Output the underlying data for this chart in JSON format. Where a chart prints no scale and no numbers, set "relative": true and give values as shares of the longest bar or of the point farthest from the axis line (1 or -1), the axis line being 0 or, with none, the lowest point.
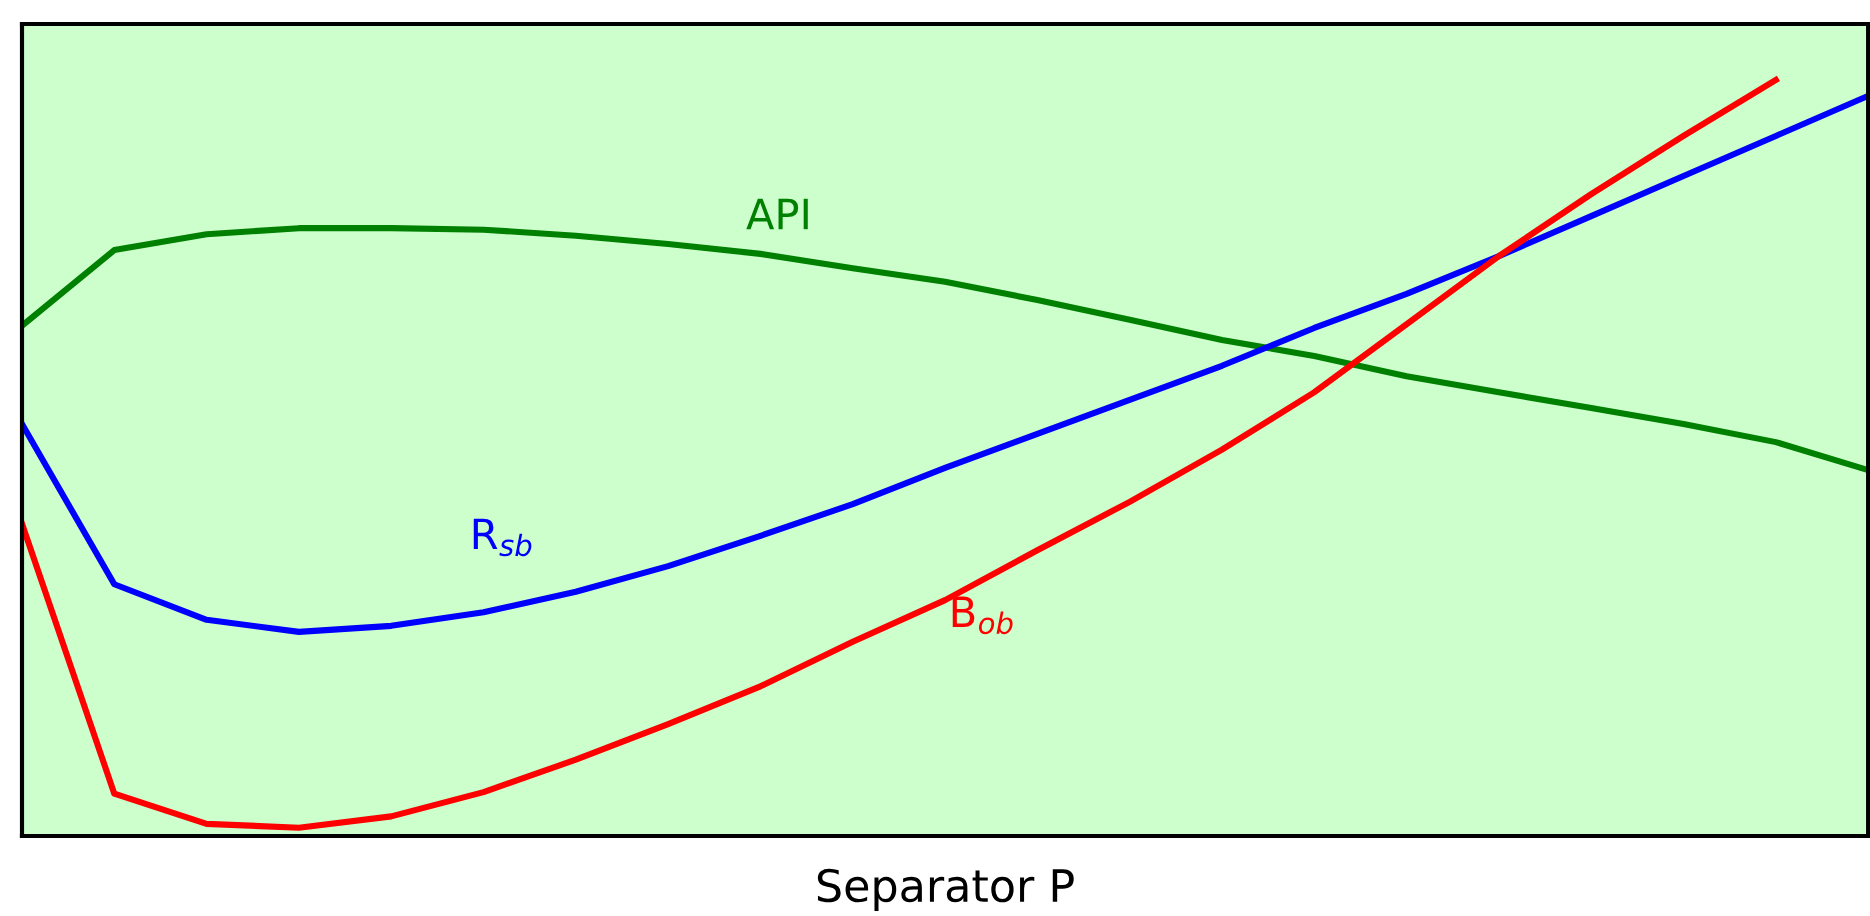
{
  "chart_data": {
    "type": "line",
    "relative": true,
    "xlabel": "Separator P",
    "grid": false,
    "legend": false,
    "marker": "none",
    "line_style": "solid",
    "categories": [
      null,
      null,
      null,
      null,
      null,
      null,
      null,
      null,
      null,
      null,
      null,
      null,
      null,
      null,
      null,
      null,
      null,
      null,
      null,
      null,
      null
    ],
    "series": [
      {
        "name": "API",
        "color": "#008000",
        "values": [
          0.675,
          0.775,
          0.796,
          0.804,
          0.804,
          0.802,
          0.794,
          0.783,
          0.77,
          0.751,
          0.733,
          0.709,
          0.683,
          0.656,
          0.635,
          0.608,
          0.587,
          0.566,
          0.545,
          0.521,
          0.484
        ]
      },
      {
        "name": "R$_{sb}$",
        "color": "#0000ff",
        "values": [
          0.545,
          0.333,
          0.286,
          0.27,
          0.278,
          0.296,
          0.323,
          0.357,
          0.397,
          0.439,
          0.487,
          0.532,
          0.577,
          0.622,
          0.672,
          0.717,
          0.767,
          0.82,
          0.873,
          0.926,
          0.979
        ]
      },
      {
        "name": "B$_{ob}$",
        "color": "#ff0000",
        "values": [
          0.413,
          0.056,
          0.016,
          0.011,
          0.026,
          0.058,
          0.101,
          0.148,
          0.198,
          0.257,
          0.312,
          0.378,
          0.442,
          0.511,
          0.587,
          0.677,
          0.767,
          0.849,
          0.926,
          1,
          null
        ]
      }
    ]
  }
}
